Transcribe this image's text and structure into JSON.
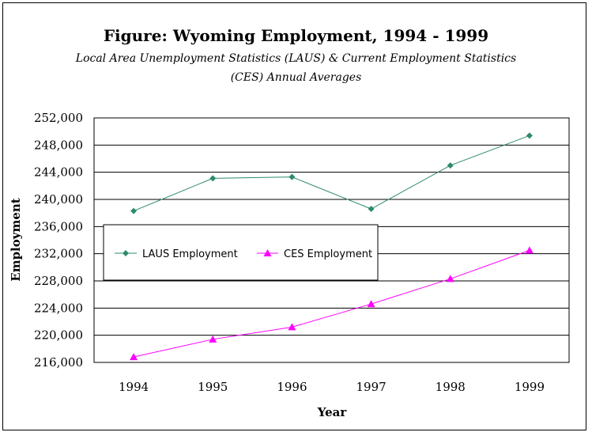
{
  "chart_data": {
    "type": "line",
    "title": "Figure:  Wyoming Employment, 1994 - 1999",
    "subtitle_line1": "Local Area Unemployment Statistics (LAUS) & Current Employment Statistics",
    "subtitle_line2": "(CES) Annual Averages",
    "xlabel": "Year",
    "ylabel": "Employment",
    "categories": [
      "1994",
      "1995",
      "1996",
      "1997",
      "1998",
      "1999"
    ],
    "ylim": [
      216000,
      252000
    ],
    "yticks": [
      216000,
      220000,
      224000,
      228000,
      232000,
      236000,
      240000,
      244000,
      248000,
      252000
    ],
    "ytick_labels": [
      "216,000",
      "220,000",
      "224,000",
      "228,000",
      "232,000",
      "236,000",
      "240,000",
      "244,000",
      "248,000",
      "252,000"
    ],
    "grid": "horizontal",
    "legend_position": "inside-left",
    "series": [
      {
        "name": "LAUS Employment",
        "marker": "diamond",
        "color": "#2e8b6a",
        "values": [
          238300,
          243100,
          243300,
          238600,
          245000,
          249400
        ]
      },
      {
        "name": "CES Employment",
        "marker": "triangle",
        "color": "#ff00ff",
        "values": [
          216800,
          219400,
          221200,
          224600,
          228300,
          232500
        ]
      }
    ]
  }
}
